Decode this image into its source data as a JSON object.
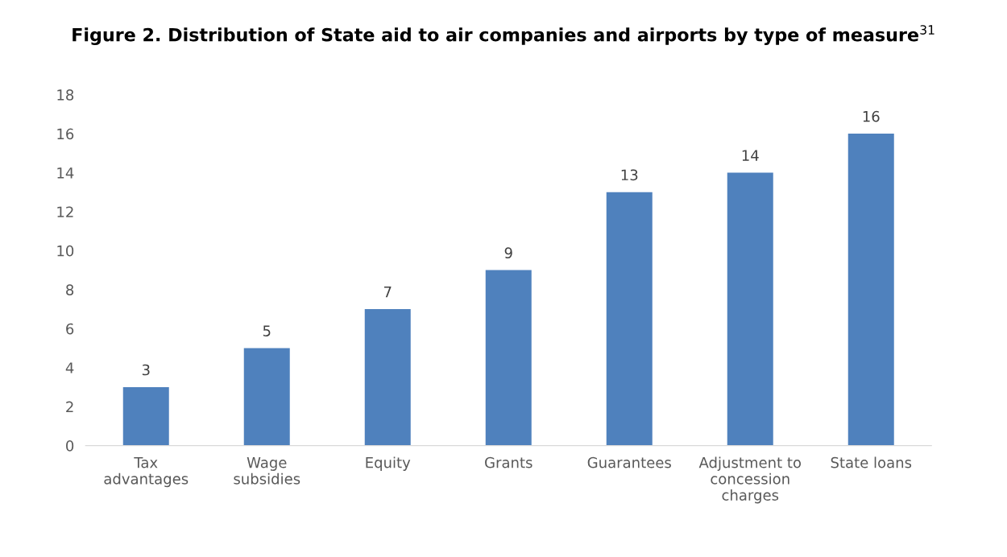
{
  "chart_data": {
    "type": "bar",
    "title": "Figure 2. Distribution of State aid to air companies and airports by type of measure$^{31}$",
    "categories": [
      "Tax\nadvantages",
      "Wage\nsubsidies",
      "Equity",
      "Grants",
      "Guarantees",
      "Adjustment to\nconcession\ncharges",
      "State loans"
    ],
    "values": [
      3,
      5,
      7,
      9,
      13,
      14,
      16
    ],
    "color": "#4f81bd",
    "ylim": [
      0,
      18
    ],
    "yticks": [
      0,
      2,
      4,
      6,
      8,
      10,
      12,
      14,
      16,
      18
    ],
    "grid": false,
    "legend": false,
    "data_labels": true
  }
}
